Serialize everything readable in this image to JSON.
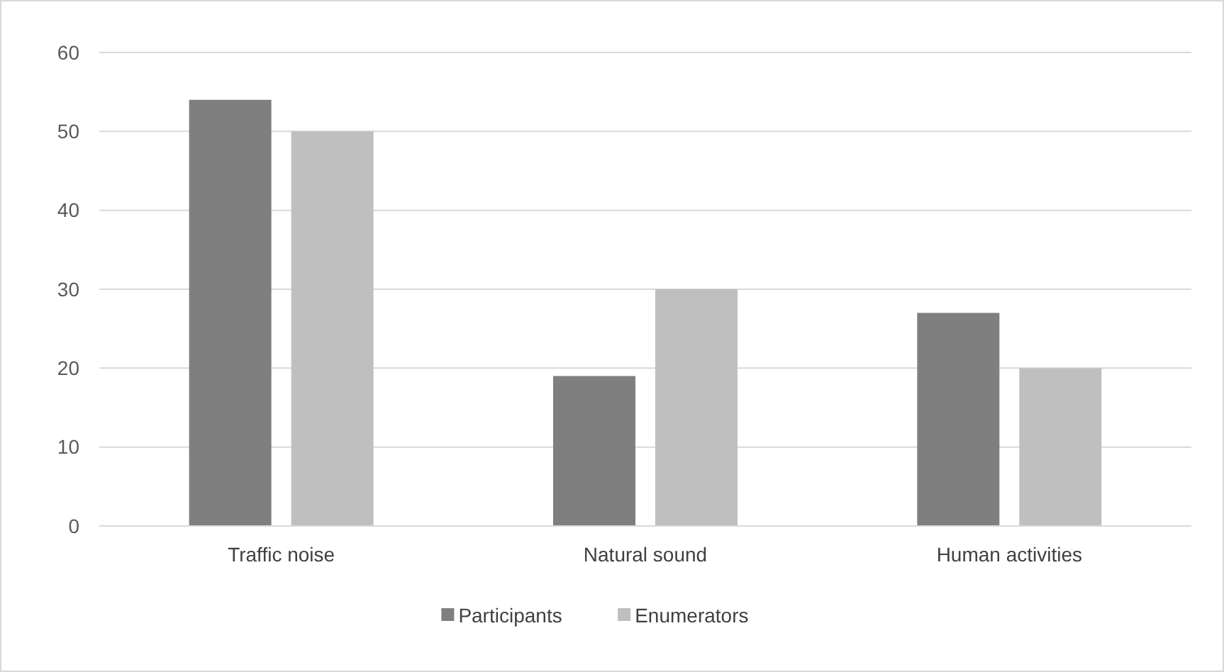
{
  "chart_data": {
    "type": "bar",
    "categories": [
      "Traffic noise",
      "Natural sound",
      "Human activities"
    ],
    "series": [
      {
        "name": "Participants",
        "color": "#7f7f7f",
        "values": [
          54,
          19,
          27
        ]
      },
      {
        "name": "Enumerators",
        "color": "#bfbfbf",
        "values": [
          50,
          30,
          20
        ]
      }
    ],
    "ylim": [
      0,
      60
    ],
    "yticks": [
      0,
      10,
      20,
      30,
      40,
      50,
      60
    ],
    "grid": "y",
    "legend": "bottom"
  }
}
